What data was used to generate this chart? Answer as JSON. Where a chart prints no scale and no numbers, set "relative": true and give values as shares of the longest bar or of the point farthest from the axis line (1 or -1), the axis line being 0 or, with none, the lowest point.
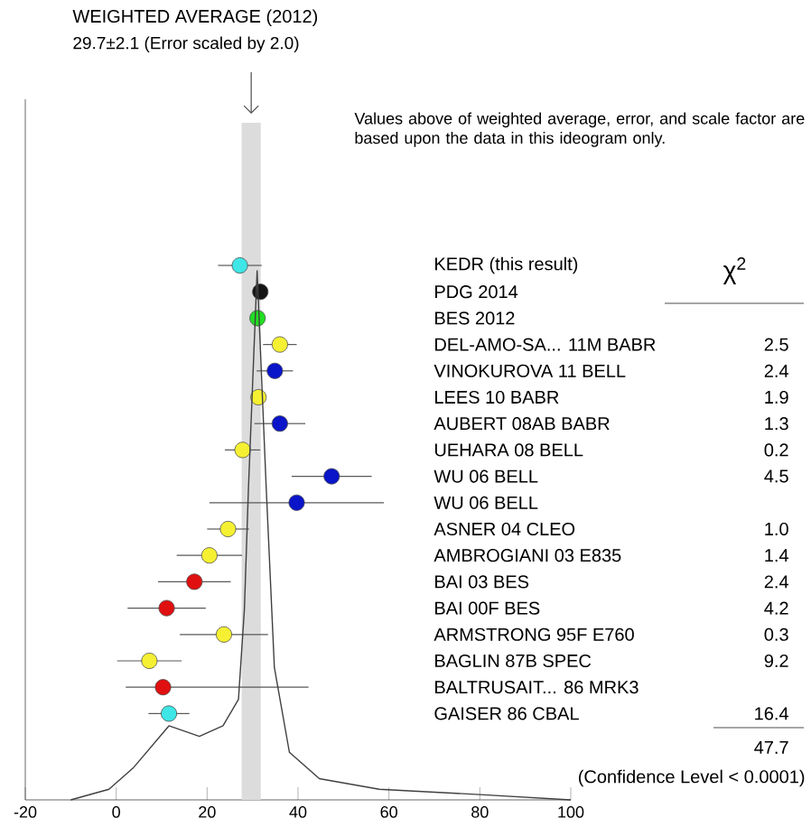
{
  "chart_data": [
    {
      "type": "scatter",
      "orientation": "horizontal",
      "title": "WEIGHTED AVERAGE (2012)",
      "subtitle": "29.7±2.1 (Error scaled by 2.0)",
      "categories": [
        "KEDR (this result)",
        "PDG 2014",
        "BES 2012",
        "DEL-AMO-SA... 11M BABR",
        "VINOKUROVA 11 BELL",
        "LEES 10 BABR",
        "AUBERT 08AB BABR",
        "UEHARA 08 BELL",
        "WU 06 BELL",
        "WU 06 BELL",
        "ASNER 04 CLEO",
        "AMBROGIANI 03 E835",
        "BAI 03 BES",
        "BAI 00F BES",
        "ARMSTRONG 95F E760",
        "BAGLIN 87B SPEC",
        "BALTRUSAIT... 86 MRK3",
        "GAISER 86 CBAL"
      ],
      "values": [
        27.2,
        31.7,
        31.1,
        36.0,
        34.9,
        31.3,
        36.0,
        27.8,
        47.4,
        39.7,
        24.6,
        20.5,
        17.2,
        11.1,
        23.7,
        7.3,
        10.3,
        11.6
      ],
      "errors": [
        4.8,
        null,
        null,
        3.7,
        4.0,
        1.4,
        5.6,
        3.9,
        8.8,
        19.2,
        4.6,
        7.2,
        8.0,
        8.6,
        9.7,
        7.1,
        [
          2.1,
          42.3
        ],
        4.5
      ],
      "colors": [
        "#3ee6e6",
        "#141414",
        "#22dd22",
        "#f5f032",
        "#0a14c8",
        "#f5f032",
        "#0a14c8",
        "#f5f032",
        "#0a14c8",
        "#0a14c8",
        "#f5f032",
        "#f5f032",
        "#e01010",
        "#e01010",
        "#f5f032",
        "#f5f032",
        "#e01010",
        "#3ee6e6"
      ],
      "xlim": [
        -20,
        100
      ],
      "xticks": [
        -20,
        0,
        20,
        40,
        60,
        80,
        100
      ],
      "bands": [
        {
          "axis": "x",
          "from": 27.6,
          "to": 31.8,
          "color": "#dcdcdc"
        }
      ],
      "annotations": [
        "Values above of weighted average, error, and scale factor are based upon the data in this ideogram only."
      ]
    },
    {
      "type": "other",
      "categories": [
        null,
        null,
        null,
        "2.5",
        "2.4",
        "1.9",
        "1.3",
        "0.2",
        "4.5",
        null,
        "1.0",
        "1.4",
        "2.4",
        "4.2",
        "0.3",
        "9.2",
        null,
        "16.4"
      ],
      "annotations": [
        "χ$^{2}$",
        "47.7",
        "(Confidence Level < 0.0001)"
      ]
    },
    {
      "type": "line",
      "relative": true,
      "color": "#404040",
      "xlim": [
        -20,
        100
      ],
      "tick_labels": false,
      "x": [
        -10,
        -1.6,
        3.7,
        11.6,
        18.3,
        23.5,
        26.9,
        28.2,
        29.1,
        31,
        33.0,
        34.8,
        38.1,
        44.7,
        57.9,
        80,
        100
      ],
      "values": [
        0,
        0.02,
        0.06,
        0.14,
        0.12,
        0.14,
        0.19,
        0.36,
        0.59,
        1,
        0.59,
        0.25,
        0.09,
        0.04,
        0.02,
        0.01,
        0
      ]
    }
  ]
}
